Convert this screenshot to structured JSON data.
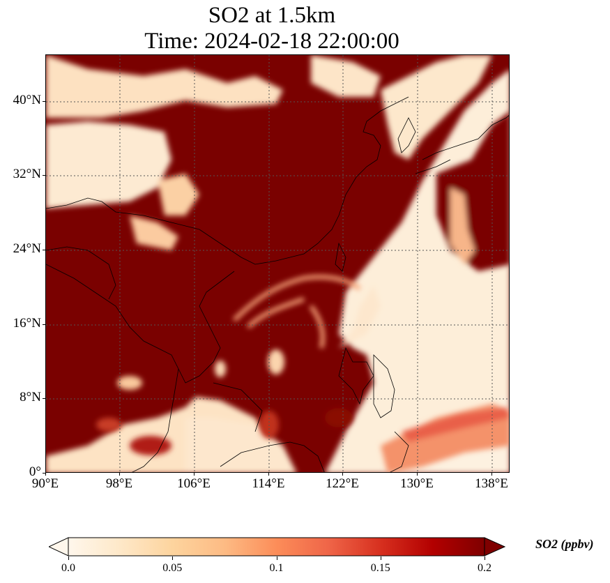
{
  "title": {
    "line1": "SO2 at 1.5km",
    "line2": "Time: 2024-02-18 22:00:00"
  },
  "map": {
    "lon_range": [
      90,
      140
    ],
    "lat_range": [
      0,
      45
    ],
    "lon_ticks": [
      {
        "value": 90,
        "label": "90°E"
      },
      {
        "value": 98,
        "label": "98°E"
      },
      {
        "value": 106,
        "label": "106°E"
      },
      {
        "value": 114,
        "label": "114°E"
      },
      {
        "value": 122,
        "label": "122°E"
      },
      {
        "value": 130,
        "label": "130°E"
      },
      {
        "value": 138,
        "label": "138°E"
      }
    ],
    "lat_ticks": [
      {
        "value": 0,
        "label": "0°"
      },
      {
        "value": 8,
        "label": "8°N"
      },
      {
        "value": 16,
        "label": "16°N"
      },
      {
        "value": 24,
        "label": "24°N"
      },
      {
        "value": 32,
        "label": "32°N"
      },
      {
        "value": 40,
        "label": "40°N"
      }
    ],
    "gridlines": true,
    "colors": {
      "saturated": "#7a0100",
      "background_low": "#fdebd3",
      "coast": "#000000",
      "grid": "#666666"
    }
  },
  "colorbar": {
    "label": "SO2 (ppbv)",
    "range": [
      0.0,
      0.2
    ],
    "ticks": [
      {
        "value": 0.0,
        "label": "0.0"
      },
      {
        "value": 0.05,
        "label": "0.05"
      },
      {
        "value": 0.1,
        "label": "0.1"
      },
      {
        "value": 0.15,
        "label": "0.15"
      },
      {
        "value": 0.2,
        "label": "0.2"
      }
    ],
    "extend": "both",
    "colormap": "OrRd",
    "stops": [
      "#fff7ec",
      "#fee8c8",
      "#fdd49e",
      "#fdbb84",
      "#fc8d59",
      "#ef6548",
      "#d7301f",
      "#b30000",
      "#7f0000"
    ]
  }
}
